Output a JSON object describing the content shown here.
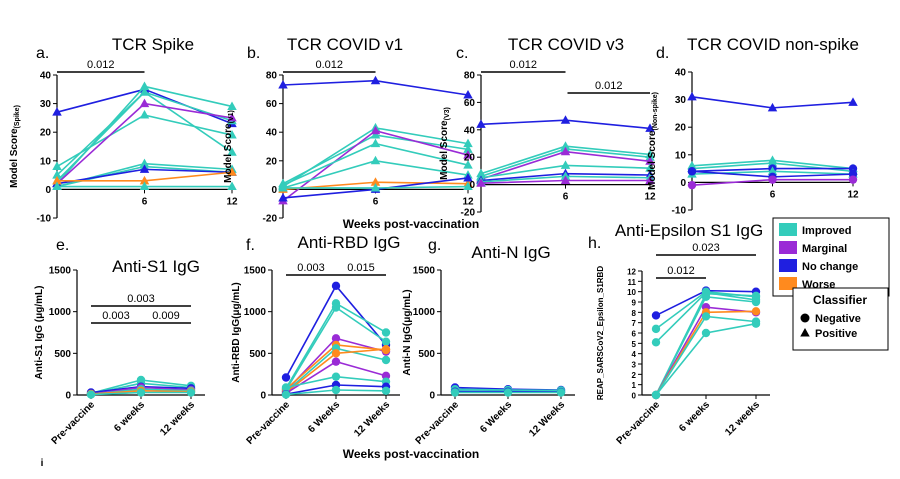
{
  "colors": {
    "Improved": "#33CCBB",
    "Marginal": "#9A2BD6",
    "No change": "#1F1FE0",
    "Worse": "#FF8A1E"
  },
  "chart_data": [
    {
      "id": "a",
      "type": "line",
      "letter": "a.",
      "title": "TCR Spike",
      "ylabel_main": "Model Score",
      "ylabel_sub": "(Spike)",
      "x": [
        "0",
        "6",
        "12"
      ],
      "xlim": [
        0,
        12
      ],
      "ylim": [
        -10,
        40
      ],
      "yticks": [
        "-10",
        "0",
        "10",
        "20",
        "30",
        "40"
      ],
      "xticks": [
        "6",
        "12"
      ],
      "marker": "triangle",
      "brackets": [
        {
          "from": "0",
          "to": "6",
          "label": "0.012"
        }
      ],
      "series": [
        {
          "class": "No change",
          "values": [
            27,
            35,
            23
          ]
        },
        {
          "class": "Improved",
          "values": [
            2,
            36,
            29
          ]
        },
        {
          "class": "Improved",
          "values": [
            5,
            34,
            24
          ]
        },
        {
          "class": "Improved",
          "values": [
            8,
            26,
            19
          ]
        },
        {
          "class": "Improved",
          "values": [
            3,
            34,
            13
          ]
        },
        {
          "class": "Marginal",
          "values": [
            2,
            30,
            25
          ]
        },
        {
          "class": "Improved",
          "values": [
            1,
            9,
            7
          ]
        },
        {
          "class": "Improved",
          "values": [
            1,
            8,
            6
          ]
        },
        {
          "class": "No change",
          "values": [
            2,
            7,
            6
          ]
        },
        {
          "class": "Worse",
          "values": [
            3,
            3,
            6
          ]
        },
        {
          "class": "Improved",
          "values": [
            1,
            1,
            1
          ]
        }
      ]
    },
    {
      "id": "b",
      "type": "line",
      "letter": "b.",
      "title": "TCR COVID v1",
      "ylabel_main": "Model Score",
      "ylabel_sub": "(V1)",
      "x": [
        "0",
        "6",
        "12"
      ],
      "xlim": [
        0,
        12
      ],
      "ylim": [
        -20,
        80
      ],
      "yticks": [
        "-20",
        "0",
        "20",
        "40",
        "60",
        "80"
      ],
      "xticks": [
        "6",
        "12"
      ],
      "marker": "triangle",
      "brackets": [
        {
          "from": "0",
          "to": "6",
          "label": "0.012"
        }
      ],
      "series": [
        {
          "class": "No change",
          "values": [
            73,
            76,
            66
          ]
        },
        {
          "class": "Improved",
          "values": [
            2,
            43,
            32
          ]
        },
        {
          "class": "Improved",
          "values": [
            4,
            38,
            28
          ]
        },
        {
          "class": "Marginal",
          "values": [
            -8,
            41,
            24
          ]
        },
        {
          "class": "Improved",
          "values": [
            3,
            32,
            17
          ]
        },
        {
          "class": "Improved",
          "values": [
            1,
            20,
            10
          ]
        },
        {
          "class": "Worse",
          "values": [
            0,
            5,
            4
          ]
        },
        {
          "class": "No change",
          "values": [
            -6,
            0,
            8
          ]
        },
        {
          "class": "Improved",
          "values": [
            1,
            1,
            2
          ]
        }
      ]
    },
    {
      "id": "c",
      "type": "line",
      "letter": "c.",
      "title": "TCR COVID v3",
      "ylabel_main": "Model Score",
      "ylabel_sub": "(V3)",
      "x": [
        "0",
        "6",
        "12"
      ],
      "xlim": [
        0,
        12
      ],
      "ylim": [
        -20,
        80
      ],
      "yticks": [
        "-20",
        "0",
        "20",
        "40",
        "60",
        "80"
      ],
      "xticks": [
        "6",
        "12"
      ],
      "marker": "triangle",
      "brackets": [
        {
          "from": "0",
          "to": "6",
          "label": "0.012"
        },
        {
          "from": "6",
          "to": "12",
          "label": "0.012"
        }
      ],
      "series": [
        {
          "class": "No change",
          "values": [
            44,
            47,
            41
          ]
        },
        {
          "class": "Improved",
          "values": [
            8,
            28,
            22
          ]
        },
        {
          "class": "Improved",
          "values": [
            6,
            26,
            20
          ]
        },
        {
          "class": "Marginal",
          "values": [
            4,
            24,
            17
          ]
        },
        {
          "class": "Improved",
          "values": [
            5,
            14,
            12
          ]
        },
        {
          "class": "No change",
          "values": [
            3,
            8,
            7
          ]
        },
        {
          "class": "Improved",
          "values": [
            2,
            6,
            5
          ]
        },
        {
          "class": "Marginal",
          "values": [
            1,
            3,
            3
          ]
        }
      ]
    },
    {
      "id": "d",
      "type": "line",
      "letter": "d.",
      "title": "TCR COVID non-spike",
      "ylabel_main": "Model Score",
      "ylabel_sub": "(Non-spike)",
      "x": [
        "0",
        "6",
        "12"
      ],
      "xlim": [
        0,
        12
      ],
      "ylim": [
        -10,
        40
      ],
      "yticks": [
        "-10",
        "0",
        "10",
        "20",
        "30",
        "40"
      ],
      "xticks": [
        "6",
        "12"
      ],
      "marker": "mixed",
      "brackets": [],
      "series": [
        {
          "class": "No change",
          "values": [
            31,
            27,
            29
          ],
          "marker": "triangle"
        },
        {
          "class": "Improved",
          "values": [
            6,
            8,
            5
          ],
          "marker": "triangle"
        },
        {
          "class": "Improved",
          "values": [
            5,
            7,
            4
          ],
          "marker": "triangle"
        },
        {
          "class": "No change",
          "values": [
            4,
            5,
            5
          ],
          "marker": "circle"
        },
        {
          "class": "Improved",
          "values": [
            3,
            4,
            3
          ],
          "marker": "triangle"
        },
        {
          "class": "No change",
          "values": [
            4,
            2,
            3
          ],
          "marker": "circle"
        },
        {
          "class": "Marginal",
          "values": [
            -1,
            1,
            1
          ],
          "marker": "circle"
        }
      ]
    },
    {
      "id": "e",
      "type": "line",
      "letter": "e.",
      "title": "Anti-S1 IgG",
      "ylabel_main": "Anti-S1 IgG (μg/mL)",
      "x": [
        "Pre-vaccine",
        "6 weeks",
        "12 weeks"
      ],
      "ylim": [
        0,
        1500
      ],
      "yticks": [
        "0",
        "500",
        "1000",
        "1500"
      ],
      "marker": "circle",
      "brackets": [
        {
          "from": "Pre-vaccine",
          "to": "6 weeks",
          "label": "0.003",
          "level": 1
        },
        {
          "from": "6 weeks",
          "to": "12 weeks",
          "label": "0.009",
          "level": 1
        },
        {
          "from": "Pre-vaccine",
          "to": "12 weeks",
          "label": "0.003",
          "level": 2
        }
      ],
      "series": [
        {
          "class": "Improved",
          "values": [
            20,
            180,
            110
          ]
        },
        {
          "class": "Improved",
          "values": [
            15,
            140,
            90
          ]
        },
        {
          "class": "No change",
          "values": [
            30,
            100,
            80
          ]
        },
        {
          "class": "Marginal",
          "values": [
            10,
            90,
            60
          ]
        },
        {
          "class": "Improved",
          "values": [
            8,
            70,
            50
          ]
        },
        {
          "class": "Worse",
          "values": [
            12,
            50,
            40
          ]
        },
        {
          "class": "Improved",
          "values": [
            5,
            30,
            30
          ]
        }
      ]
    },
    {
      "id": "f",
      "type": "line",
      "letter": "f.",
      "title": "Anti-RBD IgG",
      "ylabel_main": "Anti-RBD IgG(μg/mL)",
      "x": [
        "Pre-vaccine",
        "6 Weeks",
        "12 Weeks"
      ],
      "ylim": [
        0,
        1500
      ],
      "yticks": [
        "0",
        "500",
        "1000",
        "1500"
      ],
      "marker": "circle",
      "brackets": [
        {
          "from": "Pre-vaccine",
          "to": "6 Weeks",
          "label": "0.003",
          "level": 1
        },
        {
          "from": "6 Weeks",
          "to": "12 Weeks",
          "label": "0.015",
          "level": 1
        }
      ],
      "series": [
        {
          "class": "No change",
          "values": [
            210,
            1310,
            600
          ]
        },
        {
          "class": "Improved",
          "values": [
            80,
            1100,
            750
          ]
        },
        {
          "class": "Improved",
          "values": [
            60,
            1050,
            640
          ]
        },
        {
          "class": "Marginal",
          "values": [
            50,
            680,
            520
          ]
        },
        {
          "class": "Worse",
          "values": [
            70,
            600,
            540
          ]
        },
        {
          "class": "Improved",
          "values": [
            40,
            560,
            420
          ]
        },
        {
          "class": "Worse",
          "values": [
            30,
            500,
            550
          ]
        },
        {
          "class": "Marginal",
          "values": [
            20,
            400,
            230
          ]
        },
        {
          "class": "Improved",
          "values": [
            90,
            220,
            160
          ]
        },
        {
          "class": "No change",
          "values": [
            10,
            120,
            100
          ]
        },
        {
          "class": "Improved",
          "values": [
            5,
            60,
            50
          ]
        }
      ]
    },
    {
      "id": "g",
      "type": "line",
      "letter": "g.",
      "title": "Anti-N IgG",
      "ylabel_main": "Anti-N IgG(μg/mL)",
      "x": [
        "Pre-vaccine",
        "6 Weeks",
        "12 Weeks"
      ],
      "ylim": [
        0,
        1500
      ],
      "yticks": [
        "0",
        "500",
        "1000",
        "1500"
      ],
      "marker": "circle",
      "brackets": [],
      "series": [
        {
          "class": "No change",
          "values": [
            90,
            70,
            60
          ]
        },
        {
          "class": "Improved",
          "values": [
            70,
            60,
            55
          ]
        },
        {
          "class": "Improved",
          "values": [
            50,
            45,
            45
          ]
        },
        {
          "class": "No change",
          "values": [
            40,
            40,
            35
          ]
        },
        {
          "class": "Improved",
          "values": [
            30,
            30,
            30
          ]
        }
      ]
    },
    {
      "id": "h",
      "type": "line",
      "letter": "h.",
      "title": "Anti-Epsilon S1 IgG",
      "ylabel_main": "REAP_SARSCoV2_Epsilon_S1RBD",
      "x": [
        "Pre-vaccine",
        "6 weeks",
        "12 weeks"
      ],
      "ylim": [
        0,
        12
      ],
      "yticks": [
        "0",
        "1",
        "2",
        "3",
        "4",
        "5",
        "6",
        "7",
        "8",
        "9",
        "10",
        "11",
        "12"
      ],
      "marker": "circle",
      "brackets": [
        {
          "from": "Pre-vaccine",
          "to": "6 weeks",
          "label": "0.012",
          "level": 1
        },
        {
          "from": "Pre-vaccine",
          "to": "12 weeks",
          "label": "0.023",
          "level": 2
        }
      ],
      "series": [
        {
          "class": "No change",
          "values": [
            7.7,
            10.1,
            10.0
          ]
        },
        {
          "class": "Improved",
          "values": [
            6.4,
            10.0,
            9.5
          ]
        },
        {
          "class": "Improved",
          "values": [
            5.1,
            9.9,
            9.2
          ]
        },
        {
          "class": "Improved",
          "values": [
            0,
            9.8,
            9.6
          ]
        },
        {
          "class": "Improved",
          "values": [
            0,
            9.5,
            9.0
          ]
        },
        {
          "class": "Marginal",
          "values": [
            0,
            8.5,
            8.0
          ]
        },
        {
          "class": "Worse",
          "values": [
            0,
            8.0,
            8.1
          ]
        },
        {
          "class": "Improved",
          "values": [
            0,
            7.6,
            7.1
          ]
        },
        {
          "class": "Improved",
          "values": [
            0,
            6.0,
            6.9
          ]
        }
      ]
    }
  ],
  "shared": {
    "xtitle_top": "Weeks post-vaccination",
    "xtitle_bottom": "Weeks post-vaccination",
    "bottom_left_mark": "i"
  },
  "legend_colors": {
    "items": [
      "Improved",
      "Marginal",
      "No change",
      "Worse"
    ],
    "placement": "right"
  },
  "legend_classifier": {
    "title": "Classifier",
    "items": [
      {
        "label": "Negative",
        "marker": "circle"
      },
      {
        "label": "Positive",
        "marker": "triangle"
      }
    ]
  }
}
